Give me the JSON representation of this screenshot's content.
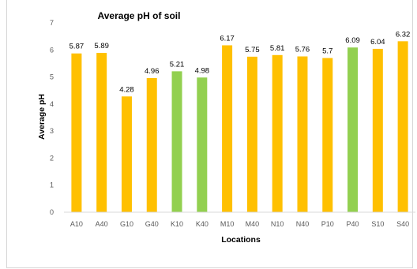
{
  "chart_data": {
    "type": "bar",
    "title": "Average pH of soil",
    "xlabel": "Locations",
    "ylabel": "Average pH",
    "ylim": [
      0,
      7
    ],
    "yticks": [
      "0",
      "1",
      "2",
      "3",
      "4",
      "5",
      "6",
      "7"
    ],
    "grid": false,
    "legend": "none",
    "categories": [
      "A10",
      "A40",
      "G10",
      "G40",
      "K10",
      "K40",
      "M10",
      "M40",
      "N10",
      "N40",
      "P10",
      "P40",
      "S10",
      "S40"
    ],
    "values": [
      5.87,
      5.89,
      4.28,
      4.96,
      5.21,
      4.98,
      6.17,
      5.75,
      5.81,
      5.76,
      5.7,
      6.09,
      6.04,
      6.32
    ],
    "data_labels": [
      "5.87",
      "5.89",
      "4.28",
      "4.96",
      "5.21",
      "4.98",
      "6.17",
      "5.75",
      "5.81",
      "5.76",
      "5.7",
      "6.09",
      "6.04",
      "6.32"
    ],
    "bar_colors": [
      "#FFC000",
      "#FFC000",
      "#FFC000",
      "#FFC000",
      "#92D050",
      "#92D050",
      "#FFC000",
      "#FFC000",
      "#FFC000",
      "#FFC000",
      "#FFC000",
      "#92D050",
      "#FFC000",
      "#FFC000"
    ],
    "colors": {
      "orange": "#FFC000",
      "green": "#92D050",
      "axis": "#d9d9d9"
    }
  }
}
